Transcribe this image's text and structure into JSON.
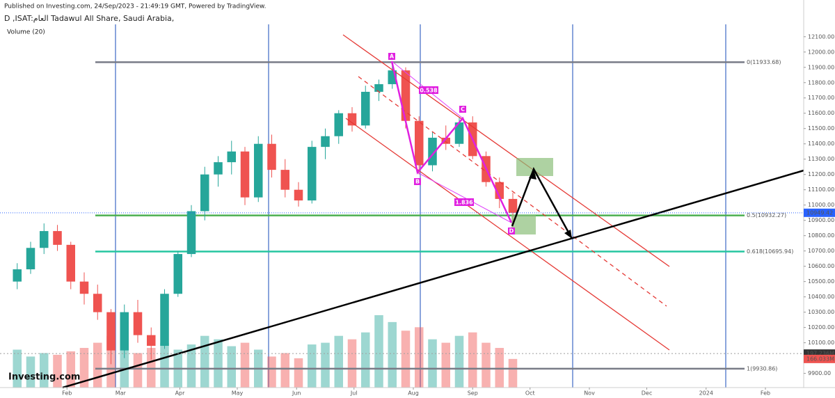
{
  "chart_data": {
    "type": "candlestick",
    "header": "Published on Investing.com, 24/Sep/2023 - 21:49:19 GMT, Powered by TradingView.",
    "title": "D ,ISAT:العام Tadawul All Share, Saudi Arabia,",
    "volume_title": "Volume (20)",
    "logo": "Investing.com",
    "x": [
      5,
      12,
      19,
      26,
      33,
      40,
      47,
      54,
      61,
      68,
      75,
      82,
      89,
      96,
      103,
      110,
      117,
      124,
      131,
      138,
      145,
      152,
      159,
      166,
      173,
      180,
      187,
      194,
      201,
      208,
      215,
      222,
      229,
      236,
      243,
      250,
      257,
      264
    ],
    "open": [
      10500,
      10580,
      10720,
      10830,
      10740,
      10500,
      10420,
      10300,
      10050,
      10300,
      10150,
      10080,
      10420,
      10680,
      10960,
      11200,
      11280,
      11350,
      11050,
      11400,
      11230,
      11100,
      11030,
      11380,
      11450,
      11600,
      11520,
      11740,
      11790,
      11880,
      11550,
      11260,
      11440,
      11400,
      11540,
      11320,
      11150,
      11040
    ],
    "high": [
      10620,
      10760,
      10880,
      10870,
      10760,
      10560,
      10480,
      10320,
      10350,
      10380,
      10200,
      10450,
      10700,
      11000,
      11250,
      11320,
      11420,
      11380,
      11450,
      11460,
      11300,
      11150,
      11420,
      11500,
      11620,
      11640,
      11780,
      11820,
      11933,
      11900,
      11580,
      11480,
      11520,
      11570,
      11580,
      11350,
      11180,
      11080
    ],
    "low": [
      10450,
      10550,
      10680,
      10700,
      10450,
      10350,
      10250,
      9960,
      10000,
      10100,
      9990,
      10060,
      10400,
      10660,
      10900,
      11120,
      11200,
      11000,
      11020,
      11180,
      11050,
      10990,
      11010,
      11300,
      11400,
      11480,
      11500,
      11680,
      11760,
      11500,
      11200,
      11220,
      11360,
      11380,
      11300,
      11120,
      10980,
      10860
    ],
    "close": [
      10580,
      10720,
      10830,
      10740,
      10500,
      10420,
      10300,
      10050,
      10300,
      10150,
      10080,
      10420,
      10680,
      10960,
      11200,
      11280,
      11350,
      11050,
      11400,
      11230,
      11100,
      11030,
      11380,
      11450,
      11600,
      11520,
      11740,
      11790,
      11880,
      11550,
      11260,
      11440,
      11400,
      11540,
      11320,
      11150,
      11040,
      10949.42
    ],
    "up_color": "#26a69a",
    "down_color": "#ef5350",
    "volume": {
      "values": [
        220,
        180,
        200,
        190,
        210,
        230,
        260,
        300,
        280,
        200,
        230,
        260,
        220,
        250,
        300,
        280,
        240,
        260,
        220,
        180,
        200,
        170,
        250,
        260,
        300,
        280,
        320,
        420,
        380,
        330,
        350,
        280,
        260,
        300,
        320,
        260,
        230,
        166.033
      ],
      "ylim": [
        0,
        2228
      ],
      "last_label": "166.033M",
      "ma": 197.236,
      "ma_label": "197.236M"
    },
    "xlim": [
      -4,
      416
    ],
    "xticks": [
      {
        "value": 31,
        "label": "Feb"
      },
      {
        "value": 59,
        "label": "Mar"
      },
      {
        "value": 90,
        "label": "Apr"
      },
      {
        "value": 120,
        "label": "May"
      },
      {
        "value": 151,
        "label": "Jun"
      },
      {
        "value": 181,
        "label": "Jul"
      },
      {
        "value": 212,
        "label": "Aug"
      },
      {
        "value": 243,
        "label": "Sep"
      },
      {
        "value": 273,
        "label": "Oct"
      },
      {
        "value": 304,
        "label": "Nov"
      },
      {
        "value": 334,
        "label": "Dec"
      },
      {
        "value": 365,
        "label": "2024"
      },
      {
        "value": 396,
        "label": "Feb"
      }
    ],
    "ylim": [
      9830,
      12340
    ],
    "yticks": [
      {
        "value": 9900,
        "label": "9900.00"
      },
      {
        "value": 10000,
        "label": "10000.00"
      },
      {
        "value": 10100,
        "label": "10100.00"
      },
      {
        "value": 10200,
        "label": "10200.00"
      },
      {
        "value": 10300,
        "label": "10300.00"
      },
      {
        "value": 10400,
        "label": "10400.00"
      },
      {
        "value": 10500,
        "label": "10500.00"
      },
      {
        "value": 10600,
        "label": "10600.00"
      },
      {
        "value": 10700,
        "label": "10700.00"
      },
      {
        "value": 10800,
        "label": "10800.00"
      },
      {
        "value": 10900,
        "label": "10900.00"
      },
      {
        "value": 11000,
        "label": "11000.00"
      },
      {
        "value": 11100,
        "label": "11100.00"
      },
      {
        "value": 11200,
        "label": "11200.00"
      },
      {
        "value": 11300,
        "label": "11300.00"
      },
      {
        "value": 11400,
        "label": "11400.00"
      },
      {
        "value": 11500,
        "label": "11500.00"
      },
      {
        "value": 11600,
        "label": "11600.00"
      },
      {
        "value": 11700,
        "label": "11700.00"
      },
      {
        "value": 11800,
        "label": "11800.00"
      },
      {
        "value": 11900,
        "label": "11900.00"
      },
      {
        "value": 12000,
        "label": "12000.00"
      },
      {
        "value": 12100,
        "label": "12100.00"
      }
    ],
    "levels": [
      {
        "value": 11933.68,
        "label": "0(11933.68)",
        "color": "#787b86"
      },
      {
        "value": 10932.27,
        "label": "0.5(10932.27)",
        "color": "#4caf50"
      },
      {
        "value": 10695.94,
        "label": "0.618(10695.94)",
        "color": "#26c6a0"
      },
      {
        "value": 9930.86,
        "label": "1(9930.86)",
        "color": "#787b86"
      }
    ],
    "pattern_labels": [
      "A",
      "B",
      "C",
      "D"
    ],
    "ratios": [
      0.538,
      1.836
    ]
  }
}
